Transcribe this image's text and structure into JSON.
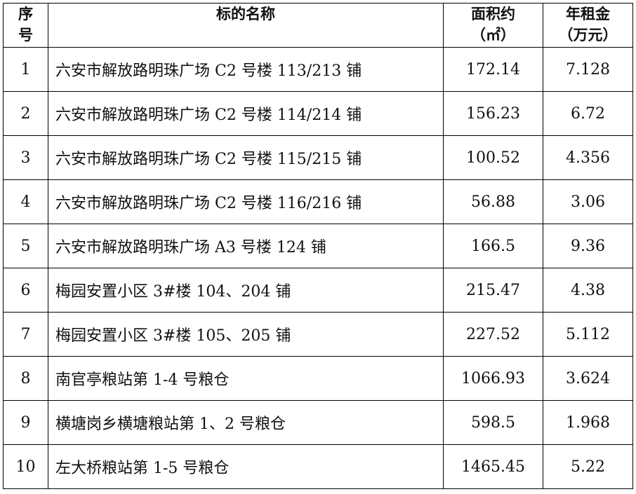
{
  "header": {
    "index": "序\n号",
    "name": "标的名称",
    "area": "面积约\n（㎡）",
    "rent": "年租金\n（万元）"
  },
  "rows": [
    {
      "index": "1",
      "name": "六安市解放路明珠广场 C2 号楼 113/213 铺",
      "area": "172.14",
      "rent": "7.128"
    },
    {
      "index": "2",
      "name": "六安市解放路明珠广场 C2 号楼 114/214 铺",
      "area": "156.23",
      "rent": "6.72"
    },
    {
      "index": "3",
      "name": "六安市解放路明珠广场 C2 号楼 115/215 铺",
      "area": "100.52",
      "rent": "4.356"
    },
    {
      "index": "4",
      "name": "六安市解放路明珠广场 C2 号楼 116/216 铺",
      "area": "56.88",
      "rent": "3.06"
    },
    {
      "index": "5",
      "name": "六安市解放路明珠广场 A3 号楼 124 铺",
      "area": "166.5",
      "rent": "9.36"
    },
    {
      "index": "6",
      "name": "梅园安置小区 3#楼 104、204 铺",
      "area": "215.47",
      "rent": "4.38"
    },
    {
      "index": "7",
      "name": "梅园安置小区 3#楼 105、205 铺",
      "area": "227.52",
      "rent": "5.112"
    },
    {
      "index": "8",
      "name": "南官亭粮站第 1-4 号粮仓",
      "area": "1066.93",
      "rent": "3.624"
    },
    {
      "index": "9",
      "name": "横塘岗乡横塘粮站第 1、2 号粮仓",
      "area": "598.5",
      "rent": "1.968"
    },
    {
      "index": "10",
      "name": "左大桥粮站第 1-5 号粮仓",
      "area": "1465.45",
      "rent": "5.22"
    }
  ]
}
